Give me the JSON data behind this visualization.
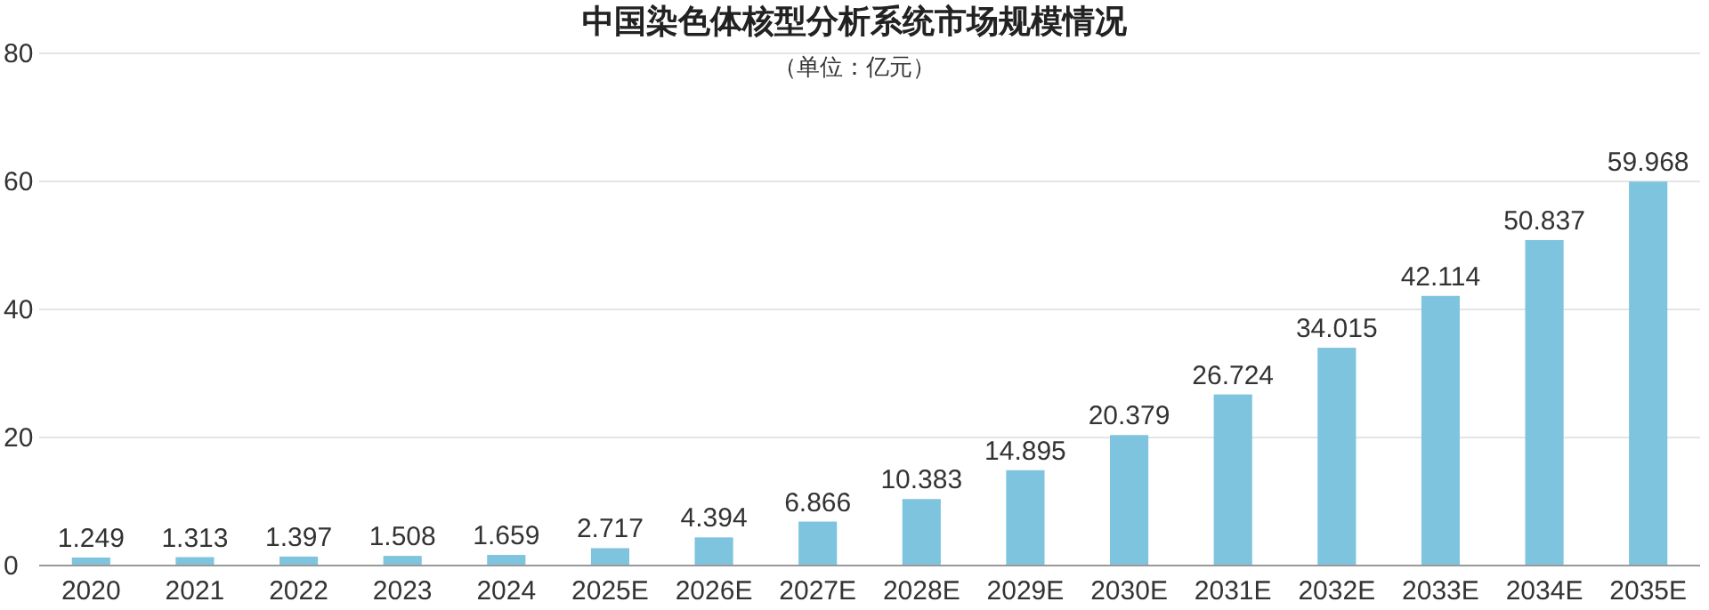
{
  "chart_data": {
    "type": "bar",
    "title": "中国染色体核型分析系统市场规模情况",
    "subtitle": "（单位：亿元）",
    "categories": [
      "2020",
      "2021",
      "2022",
      "2023",
      "2024",
      "2025E",
      "2026E",
      "2027E",
      "2028E",
      "2029E",
      "2030E",
      "2031E",
      "2032E",
      "2033E",
      "2034E",
      "2035E"
    ],
    "values": [
      1.249,
      1.313,
      1.397,
      1.508,
      1.659,
      2.717,
      4.394,
      6.866,
      10.383,
      14.895,
      20.379,
      26.724,
      34.015,
      42.114,
      50.837,
      59.968
    ],
    "color": "#7fc4df",
    "ylim": [
      0,
      80
    ],
    "yticks": [
      0,
      20,
      40,
      60,
      80
    ],
    "grid": "y",
    "data_labels": true
  }
}
